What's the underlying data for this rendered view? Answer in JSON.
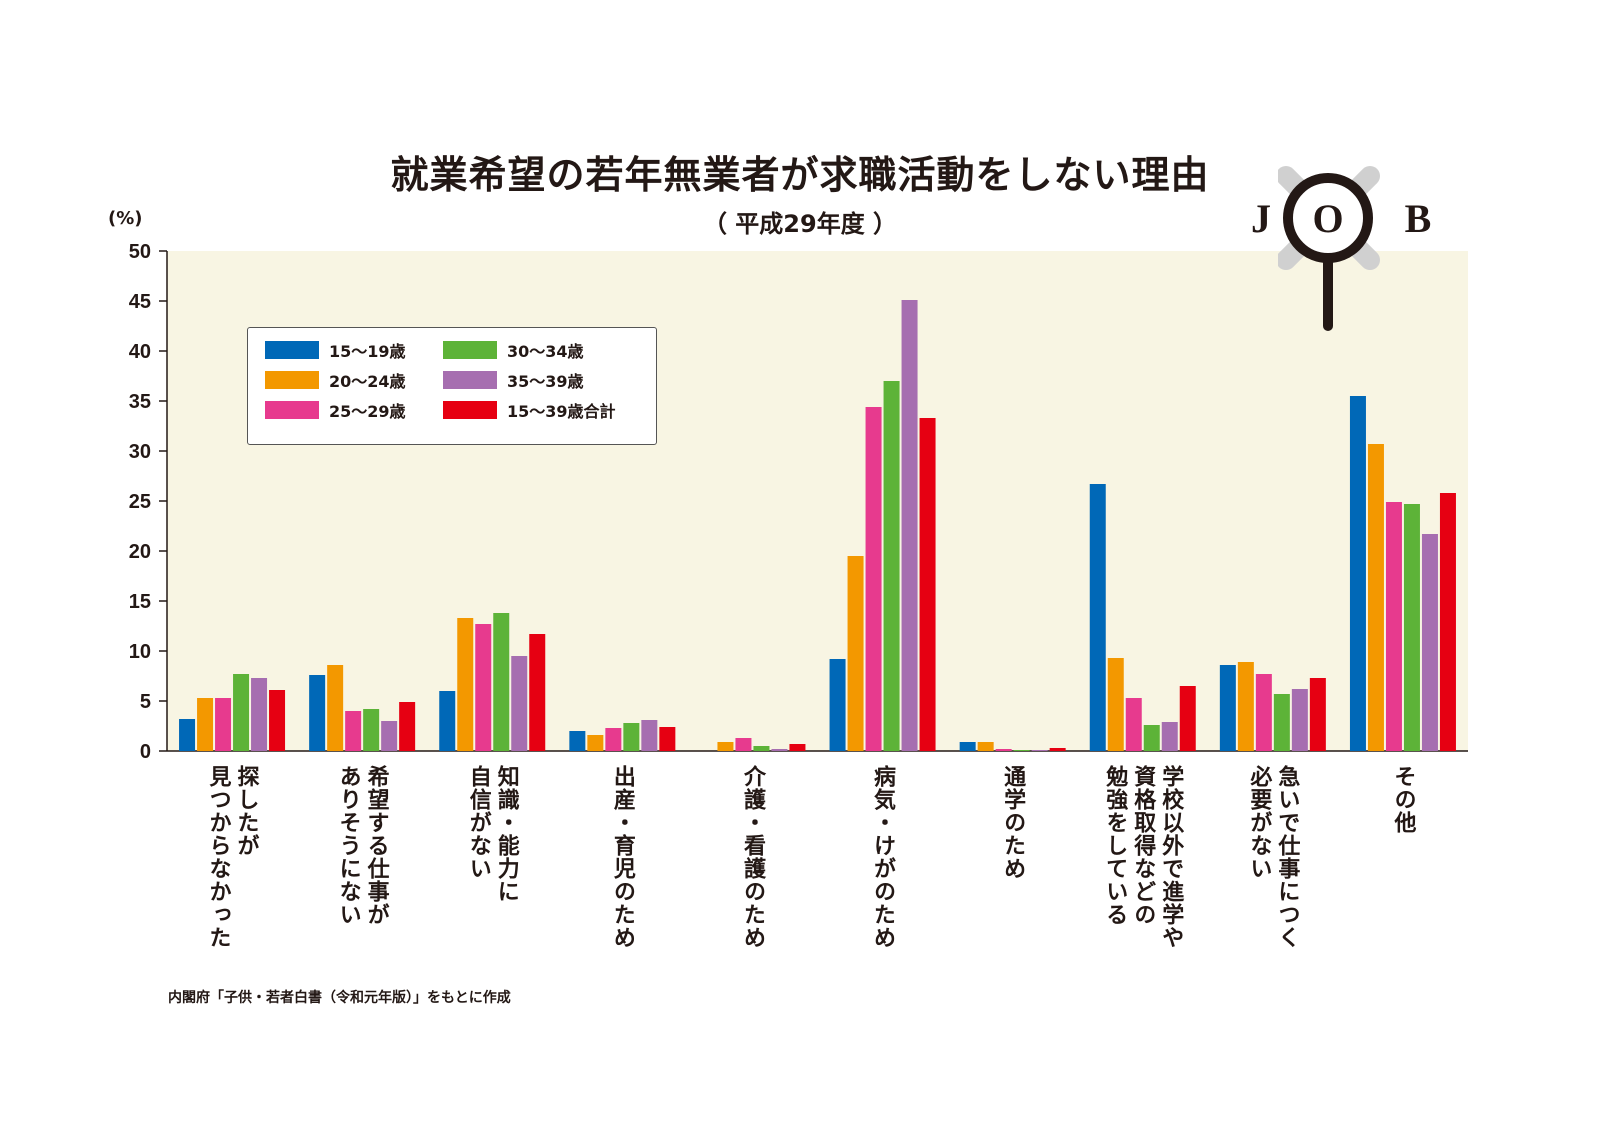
{
  "chart_data": {
    "type": "bar",
    "title": "就業希望の若年無業者が求職活動をしない理由",
    "subtitle": "（ 平成29年度 ）",
    "ylabel": "(%)",
    "ylim": [
      0,
      50
    ],
    "yticks": [
      "0",
      "5",
      "10",
      "15",
      "20",
      "25",
      "30",
      "35",
      "40",
      "45",
      "50"
    ],
    "grid": false,
    "legend_position": "top-left",
    "categories": [
      "探したが見つからなかった",
      "希望する仕事がありそうにない",
      "知識・能力に自信がない",
      "出産・育児のため",
      "介護・看護のため",
      "病気・けがのため",
      "通学のため",
      "学校以外で進学や資格取得などの勉強をしている",
      "急いで仕事につく必要がない",
      "その他"
    ],
    "category_lines": [
      [
        "探したが",
        "見つからなかった"
      ],
      [
        "希望する仕事が",
        "ありそうにない"
      ],
      [
        "知識・能力に",
        "自信がない"
      ],
      [
        "出産・育児のため"
      ],
      [
        "介護・看護のため"
      ],
      [
        "病気・けがのため"
      ],
      [
        "通学のため"
      ],
      [
        "学校以外で進学や",
        "資格取得などの",
        "勉強をしている"
      ],
      [
        "急いで仕事につく",
        "必要がない"
      ],
      [
        "その他"
      ]
    ],
    "series": [
      {
        "name": "15～19歳",
        "color": "#0068b7",
        "values": [
          3.2,
          7.6,
          6.0,
          2.0,
          0.0,
          9.2,
          0.9,
          26.7,
          8.6,
          35.5
        ]
      },
      {
        "name": "20～24歳",
        "color": "#f39800",
        "values": [
          5.3,
          8.6,
          13.3,
          1.6,
          0.9,
          19.5,
          0.9,
          9.3,
          8.9,
          30.7
        ]
      },
      {
        "name": "25～29歳",
        "color": "#e73a8e",
        "values": [
          5.3,
          4.0,
          12.7,
          2.3,
          1.3,
          34.4,
          0.2,
          5.3,
          7.7,
          24.9
        ]
      },
      {
        "name": "30～34歳",
        "color": "#5db338",
        "values": [
          7.7,
          4.2,
          13.8,
          2.8,
          0.5,
          37.0,
          0.1,
          2.6,
          5.7,
          24.7
        ]
      },
      {
        "name": "35～39歳",
        "color": "#a66eb0",
        "values": [
          7.3,
          3.0,
          9.5,
          3.1,
          0.2,
          45.1,
          0.1,
          2.9,
          6.2,
          21.7
        ]
      },
      {
        "name": "15～39歳合計",
        "color": "#e60012",
        "values": [
          6.1,
          4.9,
          11.7,
          2.4,
          0.7,
          33.3,
          0.3,
          6.5,
          7.3,
          25.8
        ]
      }
    ]
  },
  "colors": {
    "plot_background": "#f8f5e3",
    "text": "#231815",
    "logo_gray": "#d0d0d0"
  },
  "logo": {
    "text_left": "J",
    "text_center": "O",
    "text_right": "B"
  },
  "source_note": "内閣府「子供・若者白書（令和元年版）」をもとに作成"
}
